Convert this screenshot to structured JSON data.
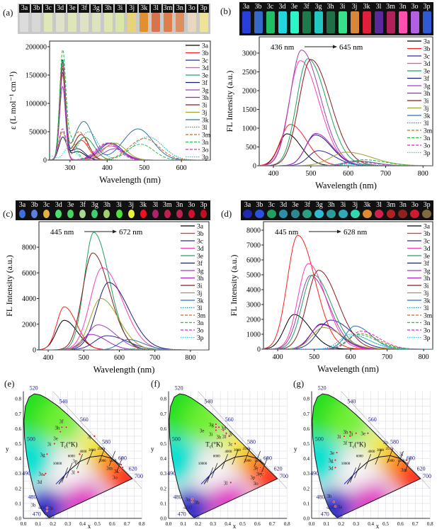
{
  "panels": {
    "a": {
      "label": "(a)",
      "strip": {
        "labels": [
          "3a",
          "3b",
          "3c",
          "3d",
          "3e",
          "3f",
          "3g",
          "3h",
          "3i",
          "3j",
          "3k",
          "3l",
          "3m",
          "3n",
          "3o",
          "3p"
        ],
        "colors": [
          "#dcdcdc",
          "#d8d8d4",
          "#e1e6b8",
          "#dfe2c8",
          "#dfe6b5",
          "#dfe2c4",
          "#dde2bf",
          "#dfe6b0",
          "#d8e6a6",
          "#e8d27a",
          "#e0902f",
          "#d7744e",
          "#dd7f4a",
          "#dc9062",
          "#e8d8c0",
          "#efe39a"
        ]
      }
    },
    "b": {
      "label": "(b)",
      "strip": {
        "labels": [
          "3a",
          "3b",
          "3c",
          "3d",
          "3e",
          "3f",
          "3g",
          "3h",
          "3i",
          "3j",
          "3k",
          "3l",
          "3m",
          "3n",
          "3o",
          "3p"
        ],
        "colors": [
          "#2a3fd8",
          "#3568c8",
          "#1fbf6a",
          "#22d6e0",
          "#2cf5c8",
          "#1e7a4a",
          "#20c8c0",
          "#1f6f48",
          "#38e08a",
          "#d8863c",
          "#e0203a",
          "#5a2a9a",
          "#b0205a",
          "#ff4fb0",
          "#b060e0",
          "#2f5ad0"
        ]
      }
    },
    "c": {
      "label": "(c)",
      "strip": {
        "labels": [
          "3a",
          "3b",
          "3c",
          "3d",
          "3e",
          "3f",
          "3g",
          "3h",
          "3i",
          "3j",
          "3k",
          "3l",
          "3m",
          "3n",
          "3o",
          "3p"
        ],
        "colors": [
          "#3a6fe0",
          "#5a80e0",
          "#e0b43a",
          "#4ae070",
          "#44d860",
          "#a8d890",
          "#3ad070",
          "#a0d070",
          "#50e040",
          "#e8f040",
          "#f01020",
          "#b02070",
          "#c02050",
          "#c02050",
          "#d01030",
          "#c01020"
        ]
      }
    },
    "d": {
      "label": "(d)",
      "strip": {
        "labels": [
          "3a",
          "3b",
          "3c",
          "3d",
          "3e",
          "3f",
          "3g",
          "3h",
          "3i",
          "3j",
          "3k",
          "3l",
          "3m",
          "3n",
          "3o",
          "3p"
        ],
        "colors": [
          "#1f2ab0",
          "#2a50e0",
          "#1fa060",
          "#2a90a8",
          "#2a8890",
          "#2aa080",
          "#30b8d0",
          "#2a9a9a",
          "#30a8b8",
          "#30d8b0",
          "#e08a30",
          "#d02050",
          "#b02020",
          "#902020",
          "#d01a30",
          "#806a40"
        ]
      }
    },
    "e": {
      "label": "(e)"
    },
    "f": {
      "label": "(f)"
    },
    "g": {
      "label": "(g)"
    }
  },
  "series_names": [
    "3a",
    "3b",
    "3c",
    "3d",
    "3e",
    "3f",
    "3g",
    "3h",
    "3i",
    "3j",
    "3k",
    "3l",
    "3m",
    "3n",
    "3o",
    "3p"
  ],
  "series_colors": [
    "#000000",
    "#ff2020",
    "#2a2a9a",
    "#ff3fb0",
    "#20a060",
    "#1a1a80",
    "#a040b0",
    "#a020d0",
    "#8b1a1a",
    "#a0a030",
    "#3070b0",
    "#20a0a0",
    "#c07020",
    "#20c040",
    "#d030c0",
    "#20d0d0"
  ],
  "chart_data": [
    {
      "id": "a",
      "type": "line",
      "xlabel": "Wavelength (nm)",
      "ylabel": "ε (L mol⁻¹ cm⁻¹)",
      "xlim": [
        245,
        678
      ],
      "ylim": [
        0,
        210000
      ],
      "xticks": [
        300,
        400,
        500,
        600
      ],
      "yticks": [
        0,
        50000,
        100000,
        150000,
        200000
      ],
      "legend": "top-right",
      "annotation": null,
      "bands": [
        [
          [
            280,
            175000,
            8
          ],
          [
            320,
            15000,
            20
          ]
        ],
        [
          [
            280,
            165000,
            8
          ],
          [
            330,
            35000,
            20
          ]
        ],
        [
          [
            280,
            155000,
            8
          ],
          [
            410,
            30000,
            30
          ]
        ],
        [
          [
            280,
            150000,
            8
          ],
          [
            410,
            25000,
            30
          ]
        ],
        [
          [
            280,
            170000,
            8
          ],
          [
            340,
            40000,
            25
          ]
        ],
        [
          [
            280,
            38000,
            10
          ],
          [
            320,
            20000,
            20
          ]
        ],
        [
          [
            280,
            130000,
            8
          ],
          [
            420,
            20000,
            30
          ]
        ],
        [
          [
            280,
            155000,
            8
          ],
          [
            405,
            30000,
            30
          ]
        ],
        [
          [
            280,
            160000,
            8
          ],
          [
            330,
            45000,
            20
          ]
        ],
        [
          [
            280,
            50000,
            10
          ],
          [
            420,
            30000,
            30
          ]
        ],
        [
          [
            280,
            170000,
            8
          ],
          [
            337,
            68000,
            25
          ],
          [
            483,
            55000,
            40
          ]
        ],
        [
          [
            280,
            175000,
            8
          ],
          [
            350,
            50000,
            25
          ],
          [
            510,
            41000,
            40
          ]
        ],
        [
          [
            280,
            165000,
            8
          ],
          [
            325,
            50000,
            20
          ],
          [
            500,
            38000,
            40
          ]
        ],
        [
          [
            280,
            178000,
            8
          ],
          [
            300,
            40000,
            15
          ],
          [
            490,
            28000,
            35
          ]
        ],
        [
          [
            280,
            55000,
            10
          ],
          [
            400,
            30000,
            30
          ]
        ],
        [
          [
            250,
            7000,
            10
          ],
          [
            300,
            25000,
            15
          ]
        ]
      ]
    },
    {
      "id": "b",
      "type": "line",
      "xlabel": "Wavelength (nm)",
      "ylabel": "FL Intensity (a.u.)",
      "xlim": [
        362,
        826
      ],
      "ylim": [
        0,
        3434
      ],
      "xticks": [
        400,
        500,
        600,
        700,
        800
      ],
      "yticks": [
        0,
        500,
        1000,
        1500,
        2000,
        2500,
        3000
      ],
      "legend": "top-right",
      "annotation": {
        "from": "436 nm",
        "to": "645 nm"
      },
      "peaks": [
        [
          436,
          850,
          30
        ],
        [
          445,
          1100,
          35
        ],
        [
          520,
          400,
          35
        ],
        [
          472,
          2800,
          40
        ],
        [
          492,
          2850,
          40
        ],
        [
          512,
          820,
          35
        ],
        [
          475,
          3080,
          40
        ],
        [
          513,
          860,
          35
        ],
        [
          500,
          2830,
          42
        ],
        [
          595,
          360,
          55
        ],
        [
          620,
          130,
          40
        ],
        [
          600,
          60,
          40
        ],
        [
          620,
          110,
          40
        ],
        [
          640,
          160,
          45
        ],
        [
          620,
          100,
          40
        ],
        [
          600,
          30,
          40
        ]
      ]
    },
    {
      "id": "c",
      "type": "line",
      "xlabel": "Wavelength (nm)",
      "ylabel": "FL Intensity (a.u.)",
      "xlim": [
        374,
        852
      ],
      "ylim": [
        0,
        9990
      ],
      "xticks": [
        400,
        500,
        600,
        700,
        800
      ],
      "yticks": [
        0,
        2000,
        4000,
        6000,
        8000
      ],
      "legend": "top-right",
      "annotation": {
        "from": "445 nm",
        "to": "672 nm"
      },
      "peaks": [
        [
          445,
          2300,
          30
        ],
        [
          445,
          3350,
          28
        ],
        [
          565,
          1100,
          45
        ],
        [
          552,
          6400,
          45
        ],
        [
          528,
          9150,
          35
        ],
        [
          570,
          5250,
          45
        ],
        [
          540,
          1950,
          40
        ],
        [
          520,
          1200,
          35
        ],
        [
          525,
          7550,
          38
        ],
        [
          548,
          4000,
          40
        ],
        [
          625,
          800,
          35
        ],
        [
          650,
          100,
          40
        ],
        [
          650,
          50,
          40
        ],
        [
          660,
          60,
          40
        ],
        [
          660,
          40,
          40
        ],
        [
          672,
          30,
          40
        ]
      ]
    },
    {
      "id": "d",
      "type": "line",
      "xlabel": "Wavelength (nm)",
      "ylabel": "FL Intensity (a.u.)",
      "xlim": [
        361,
        825
      ],
      "ylim": [
        0,
        8571
      ],
      "xticks": [
        400,
        500,
        600,
        700,
        800
      ],
      "yticks": [
        0,
        1000,
        2000,
        3000,
        4000,
        5000,
        6000,
        7000,
        8000
      ],
      "legend": "top-right",
      "annotation": {
        "from": "445 nm",
        "to": "628 nm"
      },
      "peaks": [
        [
          445,
          2330,
          35
        ],
        [
          455,
          7650,
          38
        ],
        [
          545,
          1950,
          45
        ],
        [
          484,
          5750,
          38
        ],
        [
          497,
          5000,
          40
        ],
        [
          520,
          1700,
          38
        ],
        [
          490,
          4950,
          40
        ],
        [
          520,
          1650,
          40
        ],
        [
          512,
          5300,
          42
        ],
        [
          525,
          1450,
          42
        ],
        [
          612,
          1550,
          35
        ],
        [
          600,
          1000,
          40
        ],
        [
          625,
          1050,
          40
        ],
        [
          620,
          980,
          40
        ],
        [
          628,
          1200,
          40
        ],
        [
          605,
          900,
          40
        ]
      ]
    },
    {
      "id": "e",
      "type": "scatter",
      "subtype": "cie1931",
      "xlabel": "x",
      "ylabel": "y",
      "xlim": [
        0,
        0.8
      ],
      "ylim": [
        0,
        0.8
      ],
      "points": [
        [
          "3h",
          0.26,
          0.61
        ],
        [
          "3f",
          0.29,
          0.61
        ],
        [
          "3e",
          0.25,
          0.58
        ],
        [
          "3i",
          0.21,
          0.5
        ],
        [
          "3g",
          0.16,
          0.43
        ],
        [
          "3a",
          0.15,
          0.3
        ],
        [
          "3d",
          0.14,
          0.29
        ],
        [
          "3j",
          0.48,
          0.55
        ],
        [
          "3p",
          0.38,
          0.43
        ],
        [
          "3l",
          0.37,
          0.31
        ],
        [
          "3k",
          0.66,
          0.36
        ],
        [
          "3m",
          0.67,
          0.34
        ],
        [
          "3o",
          0.65,
          0.32
        ],
        [
          "3c",
          0.16,
          0.07
        ],
        [
          "3b",
          0.16,
          0.05
        ]
      ]
    },
    {
      "id": "f",
      "type": "scatter",
      "subtype": "cie1931",
      "xlabel": "x",
      "ylabel": "y",
      "xlim": [
        0,
        0.8
      ],
      "ylim": [
        0,
        0.8
      ],
      "points": [
        [
          "3g",
          0.32,
          0.63
        ],
        [
          "3i",
          0.32,
          0.61
        ],
        [
          "3d",
          0.34,
          0.61
        ],
        [
          "3e",
          0.32,
          0.59
        ],
        [
          "3h",
          0.37,
          0.59
        ],
        [
          "3j",
          0.39,
          0.57
        ],
        [
          "3f",
          0.41,
          0.55
        ],
        [
          "3c",
          0.45,
          0.5
        ],
        [
          "3k",
          0.62,
          0.34
        ],
        [
          "3p",
          0.6,
          0.32
        ],
        [
          "3m",
          0.64,
          0.3
        ],
        [
          "3o",
          0.62,
          0.28
        ],
        [
          "3l",
          0.42,
          0.24
        ],
        [
          "3a",
          0.16,
          0.13
        ],
        [
          "3b",
          0.16,
          0.11
        ]
      ]
    },
    {
      "id": "g",
      "type": "scatter",
      "subtype": "cie1931",
      "xlabel": "x",
      "ylabel": "y",
      "xlim": [
        0,
        0.8
      ],
      "ylim": [
        0,
        0.8
      ],
      "points": [
        [
          "3h",
          0.26,
          0.58
        ],
        [
          "3j",
          0.3,
          0.57
        ],
        [
          "3i",
          0.22,
          0.55
        ],
        [
          "3f",
          0.26,
          0.55
        ],
        [
          "3e",
          0.38,
          0.57
        ],
        [
          "3e",
          0.17,
          0.44
        ],
        [
          "3g",
          0.16,
          0.39
        ],
        [
          "3d",
          0.16,
          0.34
        ],
        [
          "3p",
          0.53,
          0.47
        ],
        [
          "3l",
          0.64,
          0.39
        ],
        [
          "3m",
          0.65,
          0.37
        ],
        [
          "3b",
          0.15,
          0.11
        ],
        [
          "3a",
          0.16,
          0.08
        ]
      ]
    }
  ],
  "cie": {
    "ticks": [
      "0.0",
      "0.1",
      "0.2",
      "0.3",
      "0.4",
      "0.5",
      "0.6",
      "0.7",
      "0.8"
    ],
    "wavelength_labels": [
      [
        "380",
        0.18,
        0.0
      ],
      [
        "460",
        0.13,
        0.02
      ],
      [
        "470",
        0.09,
        0.06
      ],
      [
        "480",
        0.06,
        0.13
      ],
      [
        "490",
        0.02,
        0.29
      ],
      [
        "500",
        -0.01,
        0.52
      ],
      [
        "520",
        0.07,
        0.86
      ],
      [
        "540",
        0.27,
        0.77
      ],
      [
        "560",
        0.41,
        0.65
      ],
      [
        "580",
        0.56,
        0.5
      ],
      [
        "600",
        0.67,
        0.39
      ],
      [
        "620",
        0.74,
        0.32
      ],
      [
        "700",
        0.78,
        0.27
      ]
    ],
    "tc": {
      "t": "T",
      "sub": "c",
      "unit": "(°K)"
    },
    "temps": [
      [
        "10000",
        0.2,
        0.36
      ],
      [
        "6000",
        0.3,
        0.41
      ],
      [
        "4000",
        0.38,
        0.44
      ],
      [
        "3000",
        0.44,
        0.45
      ],
      [
        "2500",
        0.5,
        0.46
      ],
      [
        "2000",
        0.51,
        0.38
      ],
      [
        "1500",
        0.58,
        0.38
      ]
    ],
    "locus": [
      [
        0.1741,
        0.005
      ],
      [
        0.144,
        0.0297
      ],
      [
        0.1241,
        0.0578
      ],
      [
        0.1096,
        0.0868
      ],
      [
        0.0913,
        0.1327
      ],
      [
        0.0687,
        0.2007
      ],
      [
        0.0454,
        0.295
      ],
      [
        0.0235,
        0.4127
      ],
      [
        0.0082,
        0.5384
      ],
      [
        0.0039,
        0.6548
      ],
      [
        0.0139,
        0.7502
      ],
      [
        0.0389,
        0.812
      ],
      [
        0.0743,
        0.8338
      ],
      [
        0.1142,
        0.8262
      ],
      [
        0.1547,
        0.8059
      ],
      [
        0.2296,
        0.7543
      ],
      [
        0.3016,
        0.6923
      ],
      [
        0.3731,
        0.6245
      ],
      [
        0.4441,
        0.5547
      ],
      [
        0.5125,
        0.4866
      ],
      [
        0.5752,
        0.4242
      ],
      [
        0.627,
        0.3725
      ],
      [
        0.6915,
        0.3083
      ],
      [
        0.719,
        0.2809
      ],
      [
        0.7347,
        0.2653
      ]
    ],
    "planck": [
      [
        0.24,
        0.23
      ],
      [
        0.28,
        0.29
      ],
      [
        0.31,
        0.32
      ],
      [
        0.38,
        0.38
      ],
      [
        0.45,
        0.41
      ],
      [
        0.53,
        0.42
      ],
      [
        0.6,
        0.4
      ],
      [
        0.65,
        0.36
      ]
    ]
  }
}
